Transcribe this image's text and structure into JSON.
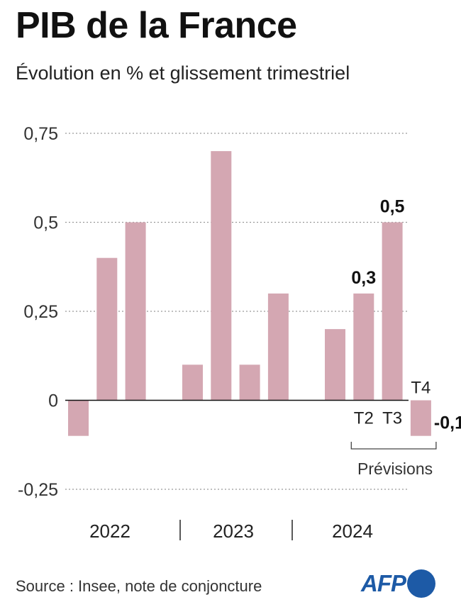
{
  "header": {
    "title": "PIB de la France",
    "subtitle": "Évolution en % et glissement trimestriel"
  },
  "footer": {
    "source": "Source : Insee, note de conjoncture",
    "logo": "AFP"
  },
  "colors": {
    "bar": "#d4a7b2",
    "grid": "#999999",
    "text": "#111111"
  },
  "chart_data": {
    "type": "bar",
    "ylim": [
      -0.25,
      0.75
    ],
    "yticks": [
      0.75,
      0.5,
      0.25,
      0,
      -0.25
    ],
    "ytick_labels": [
      "0,75",
      "0,5",
      "0,25",
      "0",
      "-0,25"
    ],
    "grid": "dotted horizontal",
    "groups": [
      {
        "year": "2022",
        "values": [
          -0.1,
          0.4,
          0.5,
          0
        ]
      },
      {
        "year": "2023",
        "values": [
          0.1,
          0.7,
          0.1,
          0.3
        ]
      },
      {
        "year": "2024",
        "values": [
          0.2,
          0.3,
          0.5,
          -0.1
        ]
      }
    ],
    "data_labels": [
      {
        "group": 2,
        "index": 1,
        "text": "0,3"
      },
      {
        "group": 2,
        "index": 2,
        "text": "0,5"
      },
      {
        "group": 2,
        "index": 3,
        "text": "-0,1"
      }
    ],
    "quarter_labels": [
      {
        "group": 2,
        "index": 1,
        "text": "T2"
      },
      {
        "group": 2,
        "index": 2,
        "text": "T3"
      },
      {
        "group": 2,
        "index": 3,
        "text": "T4"
      }
    ],
    "forecast_bracket": {
      "group": 2,
      "from_index": 1,
      "to_index": 3,
      "label": "Prévisions"
    }
  }
}
